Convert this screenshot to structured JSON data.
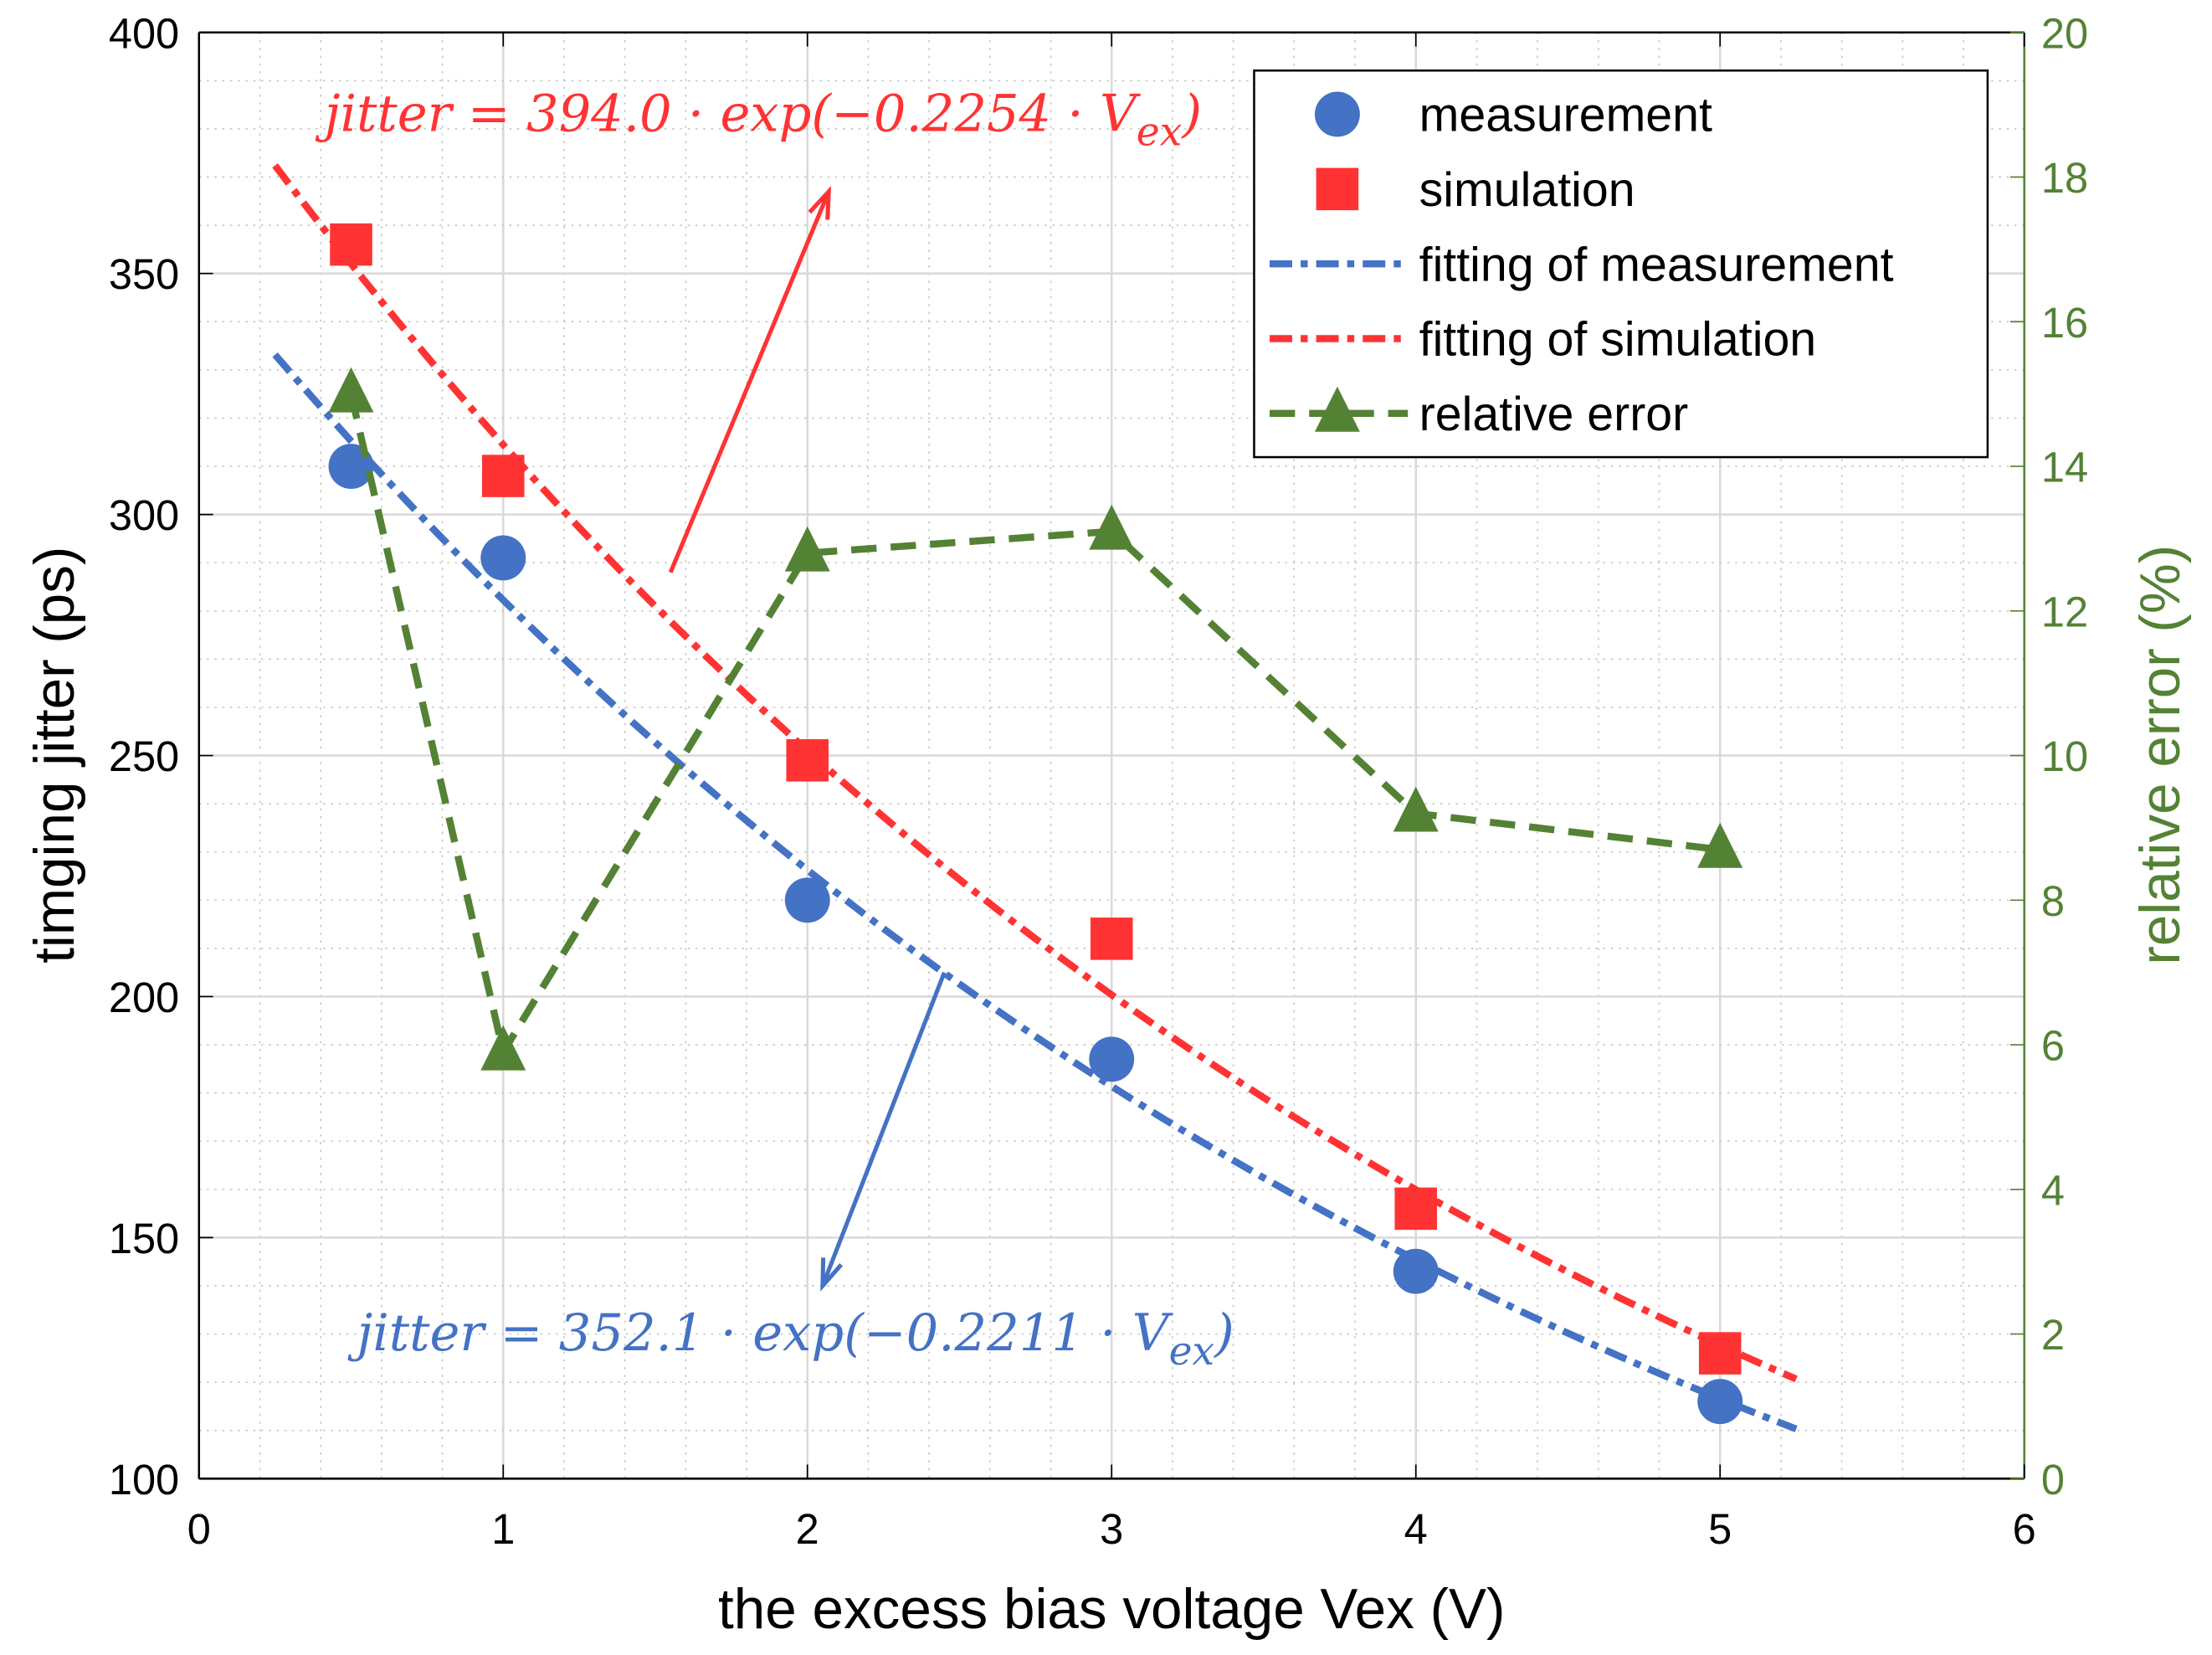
{
  "chart_data": {
    "type": "line",
    "xlabel": "the excess bias voltage Vex (V)",
    "ylabel": "timging jitter (ps)",
    "y2label": "relative error (%)",
    "xlim": [
      0,
      6
    ],
    "ylim": [
      100,
      400
    ],
    "y2lim": [
      0,
      20
    ],
    "xticks": [
      0,
      1,
      2,
      3,
      4,
      5,
      6
    ],
    "yticks": [
      100,
      150,
      200,
      250,
      300,
      350,
      400
    ],
    "y2ticks": [
      0,
      2,
      4,
      6,
      8,
      10,
      12,
      14,
      16,
      18,
      20
    ],
    "grid": true,
    "legend_position": "top-right",
    "x": [
      0.5,
      1,
      2,
      3,
      4,
      5
    ],
    "series": [
      {
        "name": "measurement",
        "axis": "left",
        "marker": "circle",
        "color": "#4472C4",
        "values": [
          310,
          291,
          220,
          187,
          143,
          116
        ]
      },
      {
        "name": "simulation",
        "axis": "left",
        "marker": "square",
        "color": "#FF3333",
        "values": [
          356,
          308,
          249,
          212,
          156,
          126
        ]
      },
      {
        "name": "fitting of measurement",
        "axis": "left",
        "style": "dash-dot",
        "color": "#4472C4",
        "fit": {
          "a": 352.1,
          "b": -0.2211,
          "range": [
            0.25,
            5.25
          ]
        }
      },
      {
        "name": "fitting of simulation",
        "axis": "left",
        "style": "dash-dot",
        "color": "#FF3333",
        "fit": {
          "a": 394.0,
          "b": -0.2254,
          "range": [
            0.25,
            5.25
          ]
        }
      },
      {
        "name": "relative error",
        "axis": "right",
        "marker": "triangle",
        "style": "dashed",
        "color": "#548235",
        "values": [
          15.0,
          5.9,
          12.8,
          13.1,
          9.2,
          8.7
        ]
      }
    ],
    "annotations": [
      {
        "text_main": "jitter = 394.0 · exp(−0.2254 · V",
        "sub": "ex",
        "close": ")",
        "color": "#FF3333"
      },
      {
        "text_main": "jitter = 352.1 · exp(−0.2211 · V",
        "sub": "ex",
        "close": ")",
        "color": "#4472C4"
      }
    ]
  }
}
